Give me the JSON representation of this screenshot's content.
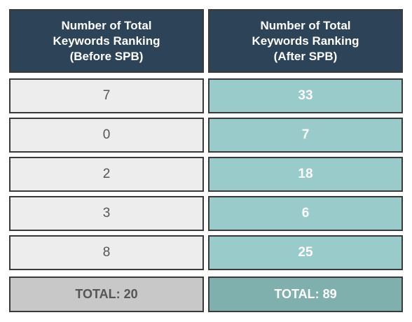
{
  "chart_data": {
    "type": "table",
    "columns": [
      {
        "lines": [
          "Number of Total",
          "Keywords Ranking",
          "(Before SPB)"
        ]
      },
      {
        "lines": [
          "Number of Total",
          "Keywords Ranking",
          "(After SPB)"
        ]
      }
    ],
    "rows": [
      {
        "before": 7,
        "after": 33
      },
      {
        "before": 0,
        "after": 7
      },
      {
        "before": 2,
        "after": 18
      },
      {
        "before": 3,
        "after": 6
      },
      {
        "before": 8,
        "after": 25
      }
    ],
    "totals": {
      "before": "TOTAL: 20",
      "after": "TOTAL: 89"
    }
  },
  "colors": {
    "header_bg": "#2c4358",
    "before_bg": "#ededed",
    "after_bg": "#98cbc9",
    "total_before_bg": "#c8c8c8",
    "total_after_bg": "#7fb0ad"
  }
}
